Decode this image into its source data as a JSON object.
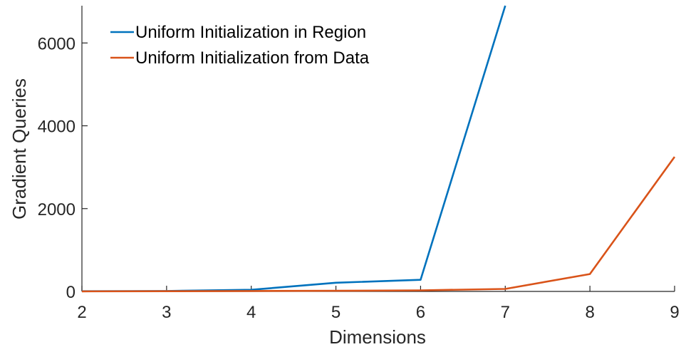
{
  "chart_data": {
    "type": "line",
    "x": [
      2,
      3,
      4,
      5,
      6,
      7,
      8,
      9
    ],
    "xlabel": "Dimensions",
    "ylabel": "Gradient Queries",
    "xlim": [
      2,
      9
    ],
    "ylim": [
      0,
      6900
    ],
    "xticks": [
      "2",
      "3",
      "4",
      "5",
      "6",
      "7",
      "8",
      "9"
    ],
    "yticks": [
      "0",
      "2000",
      "4000",
      "6000"
    ],
    "grid": false,
    "legend_position": "top-left",
    "series": [
      {
        "name": "Uniform Initialization in Region",
        "color": "#0072BD",
        "x": [
          2,
          3,
          4,
          5,
          6,
          7
        ],
        "values": [
          5,
          10,
          40,
          210,
          280,
          6900
        ]
      },
      {
        "name": "Uniform Initialization from Data",
        "color": "#D95319",
        "x": [
          2,
          3,
          4,
          5,
          6,
          7,
          8,
          9
        ],
        "values": [
          2,
          5,
          10,
          15,
          25,
          60,
          420,
          3250
        ]
      }
    ]
  }
}
